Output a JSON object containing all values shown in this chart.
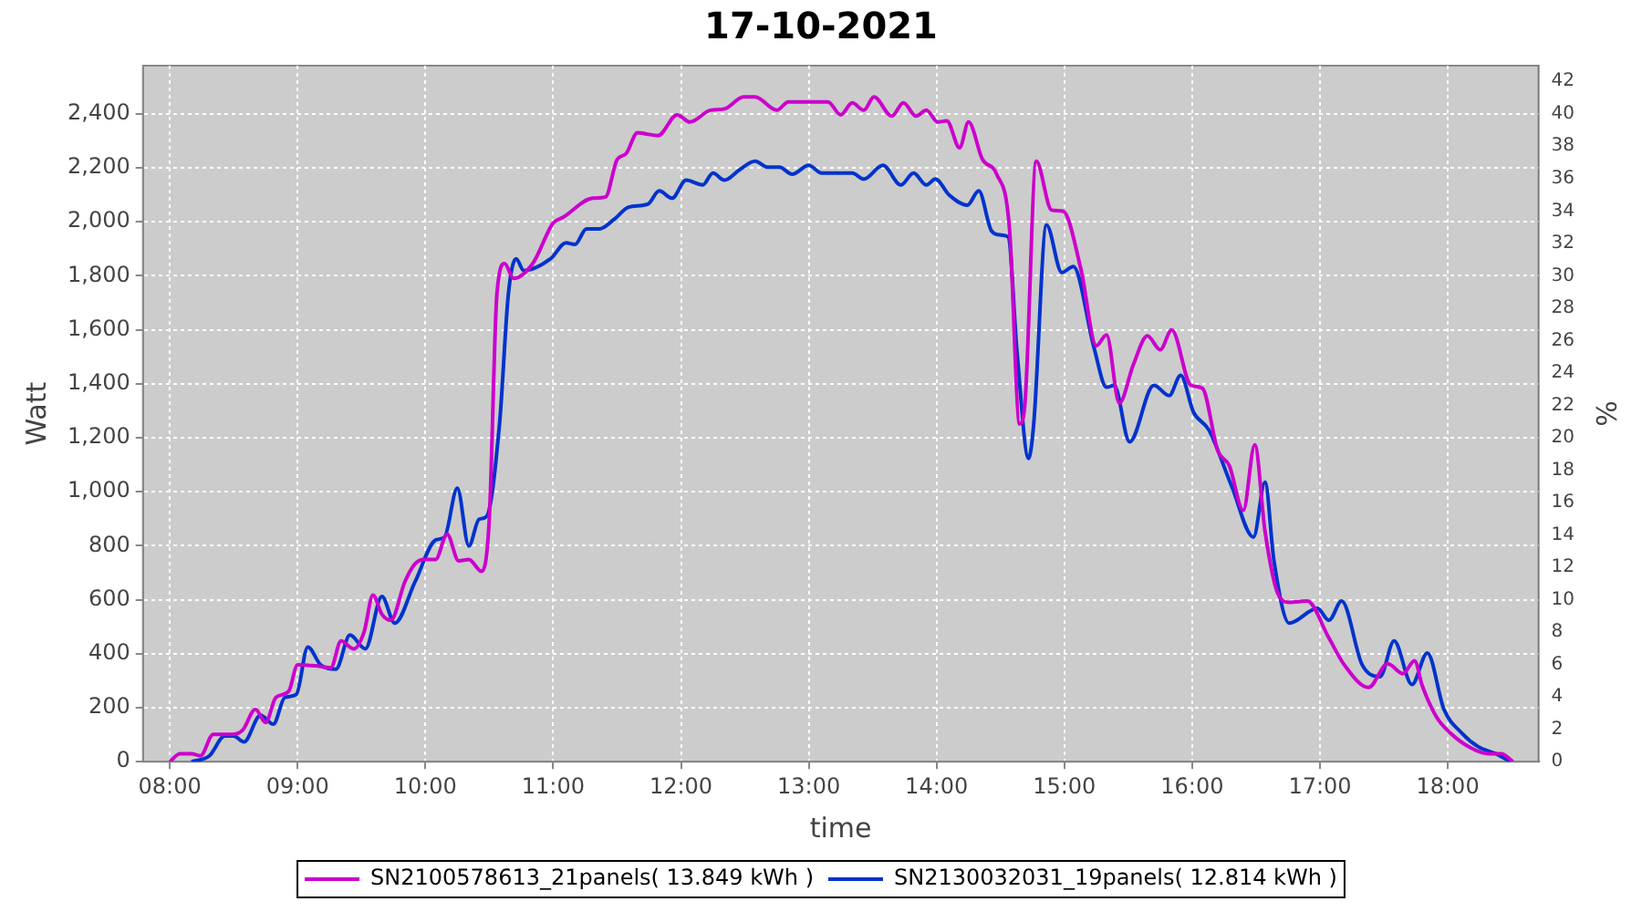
{
  "chart_data": {
    "type": "line",
    "title": "17-10-2021",
    "xlabel": "time",
    "ylabel": "Watt",
    "y2label": "%",
    "xlim": [
      7.79,
      18.71
    ],
    "xticks": [
      {
        "value": 8,
        "label": "08:00"
      },
      {
        "value": 9,
        "label": "09:00"
      },
      {
        "value": 10,
        "label": "10:00"
      },
      {
        "value": 11,
        "label": "11:00"
      },
      {
        "value": 12,
        "label": "12:00"
      },
      {
        "value": 13,
        "label": "13:00"
      },
      {
        "value": 14,
        "label": "14:00"
      },
      {
        "value": 15,
        "label": "15:00"
      },
      {
        "value": 16,
        "label": "16:00"
      },
      {
        "value": 17,
        "label": "17:00"
      },
      {
        "value": 18,
        "label": "18:00"
      }
    ],
    "ylim": [
      0,
      2578
    ],
    "yticks": [
      0,
      200,
      400,
      600,
      800,
      {
        "value": 1000,
        "label": "1,000"
      },
      {
        "value": 1200,
        "label": "1,200"
      },
      {
        "value": 1400,
        "label": "1,400"
      },
      {
        "value": 1600,
        "label": "1,600"
      },
      {
        "value": 1800,
        "label": "1,800"
      },
      {
        "value": 2000,
        "label": "2,000"
      },
      {
        "value": 2200,
        "label": "2,200"
      },
      {
        "value": 2400,
        "label": "2,400"
      }
    ],
    "y2lim": [
      0,
      42.97
    ],
    "y2ticks": [
      0,
      2,
      4,
      6,
      8,
      10,
      12,
      14,
      16,
      18,
      20,
      22,
      24,
      26,
      28,
      30,
      32,
      34,
      36,
      38,
      40,
      42
    ],
    "grid": true,
    "legend": "bottom",
    "marker": "none",
    "line_style": "solid",
    "series": [
      {
        "name": "SN2100578613_21panels( 13.849 kWh )",
        "color": "#cc00cc",
        "x": [
          8.0,
          8.08,
          8.17,
          8.24,
          8.34,
          8.48,
          8.57,
          8.67,
          8.75,
          8.83,
          8.93,
          9.0,
          9.14,
          9.26,
          9.34,
          9.44,
          9.52,
          9.59,
          9.66,
          9.73,
          9.84,
          9.92,
          9.99,
          10.08,
          10.17,
          10.26,
          10.34,
          10.44,
          10.5,
          10.56,
          10.62,
          10.69,
          10.84,
          11.0,
          11.08,
          11.31,
          11.41,
          11.5,
          11.57,
          11.66,
          11.73,
          11.82,
          11.97,
          12.07,
          12.23,
          12.34,
          12.49,
          12.58,
          12.75,
          12.84,
          13.15,
          13.25,
          13.34,
          13.43,
          13.51,
          13.65,
          13.74,
          13.84,
          13.92,
          14.01,
          14.08,
          14.18,
          14.25,
          14.36,
          14.47,
          14.57,
          14.65,
          14.69,
          14.78,
          14.9,
          14.99,
          15.13,
          15.25,
          15.33,
          15.43,
          15.54,
          15.65,
          15.75,
          15.84,
          15.99,
          16.08,
          16.2,
          16.29,
          16.4,
          16.49,
          16.57,
          16.67,
          16.76,
          16.9,
          17.07,
          17.19,
          17.38,
          17.53,
          17.65,
          17.74,
          17.8,
          17.91,
          18.02,
          18.18,
          18.32,
          18.42,
          18.51
        ],
        "values": [
          0,
          29,
          29,
          22,
          101,
          101,
          117,
          194,
          145,
          238,
          260,
          359,
          355,
          348,
          447,
          418,
          480,
          617,
          546,
          524,
          667,
          733,
          749,
          749,
          843,
          744,
          749,
          705,
          898,
          1735,
          1845,
          1790,
          1845,
          1995,
          2017,
          2087,
          2092,
          2230,
          2252,
          2330,
          2325,
          2319,
          2396,
          2369,
          2413,
          2418,
          2462,
          2462,
          2413,
          2444,
          2444,
          2396,
          2440,
          2413,
          2462,
          2391,
          2440,
          2391,
          2413,
          2369,
          2374,
          2274,
          2369,
          2230,
          2176,
          1977,
          1251,
          1317,
          2224,
          2043,
          2039,
          1823,
          1541,
          1581,
          1328,
          1471,
          1577,
          1526,
          1599,
          1394,
          1383,
          1152,
          1097,
          931,
          1174,
          854,
          623,
          590,
          595,
          458,
          359,
          275,
          363,
          326,
          374,
          282,
          167,
          106,
          51,
          29,
          29,
          0
        ]
      },
      {
        "name": "SN2130032031_19panels( 12.814 kWh )",
        "color": "#0033cc",
        "x": [
          8.17,
          8.31,
          8.43,
          8.5,
          8.58,
          8.71,
          8.81,
          8.9,
          8.99,
          9.08,
          9.18,
          9.3,
          9.41,
          9.53,
          9.66,
          9.76,
          9.92,
          10.08,
          10.15,
          10.25,
          10.34,
          10.42,
          10.48,
          10.58,
          10.65,
          10.71,
          10.77,
          10.98,
          11.1,
          11.17,
          11.26,
          11.36,
          11.48,
          11.59,
          11.74,
          11.83,
          11.93,
          12.04,
          12.17,
          12.25,
          12.34,
          12.46,
          12.58,
          12.68,
          12.77,
          12.87,
          13.0,
          13.1,
          13.34,
          13.43,
          13.58,
          13.72,
          13.82,
          13.92,
          13.99,
          14.1,
          14.24,
          14.33,
          14.43,
          14.5,
          14.56,
          14.63,
          14.72,
          14.76,
          14.86,
          14.98,
          15.07,
          15.23,
          15.33,
          15.39,
          15.51,
          15.7,
          15.82,
          15.91,
          16.01,
          16.13,
          16.31,
          16.48,
          16.57,
          16.64,
          16.76,
          16.98,
          17.07,
          17.17,
          17.33,
          17.47,
          17.58,
          17.72,
          17.84,
          17.97,
          18.11,
          18.24,
          18.38,
          18.49
        ],
        "values": [
          0,
          22,
          95,
          95,
          73,
          172,
          139,
          238,
          249,
          425,
          359,
          343,
          469,
          418,
          612,
          513,
          667,
          821,
          832,
          1013,
          799,
          898,
          909,
          1251,
          1735,
          1863,
          1819,
          1863,
          1922,
          1916,
          1973,
          1973,
          2010,
          2054,
          2065,
          2114,
          2087,
          2154,
          2136,
          2180,
          2154,
          2193,
          2224,
          2202,
          2202,
          2176,
          2209,
          2180,
          2180,
          2158,
          2209,
          2136,
          2180,
          2136,
          2158,
          2098,
          2061,
          2114,
          1966,
          1951,
          1944,
          1515,
          1123,
          1251,
          1988,
          1812,
          1834,
          1537,
          1387,
          1394,
          1185,
          1394,
          1356,
          1431,
          1295,
          1229,
          1019,
          832,
          1035,
          744,
          513,
          568,
          524,
          595,
          359,
          315,
          447,
          286,
          403,
          194,
          106,
          55,
          29,
          0
        ]
      }
    ]
  }
}
